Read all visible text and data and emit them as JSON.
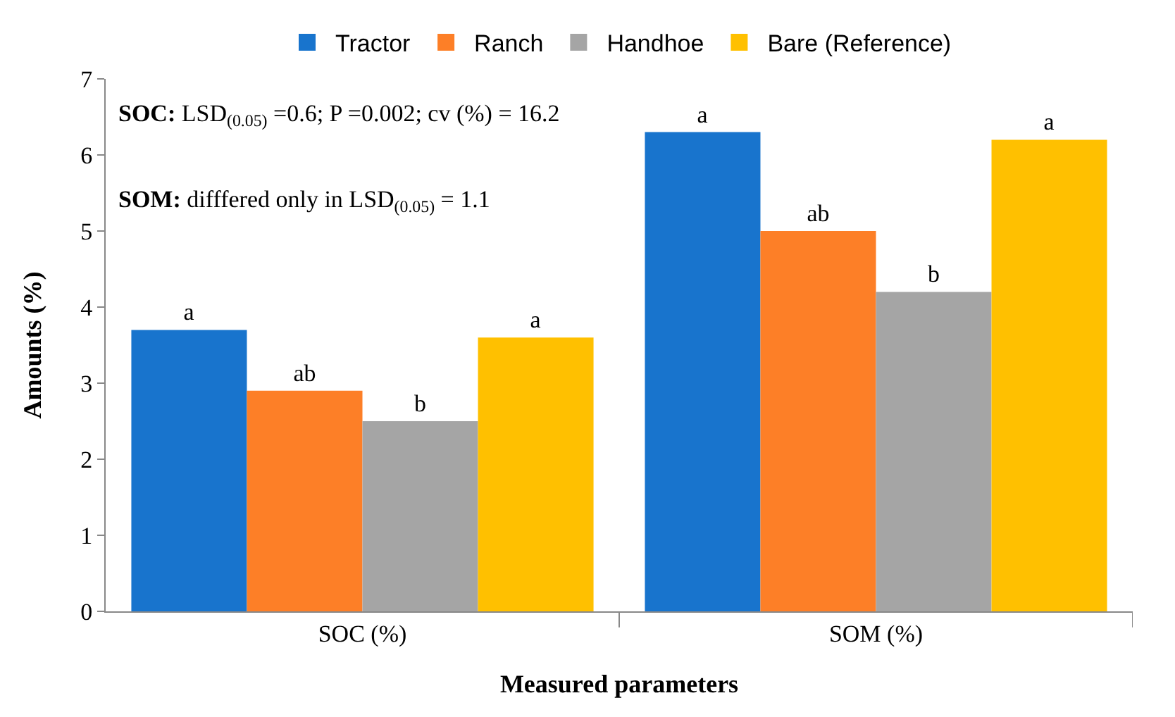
{
  "chart_data": {
    "type": "bar",
    "xlabel": "Measured parameters",
    "ylabel": "Amounts (%)",
    "categories": [
      "SOC (%)",
      "SOM (%)"
    ],
    "series": [
      {
        "name": "Tractor",
        "color": "#1874cd",
        "values": [
          3.7,
          6.3
        ],
        "value_labels": [
          "a",
          "a"
        ]
      },
      {
        "name": "Ranch",
        "color": "#fd7f27",
        "values": [
          2.9,
          5.0
        ],
        "value_labels": [
          "ab",
          "ab"
        ]
      },
      {
        "name": "Handhoe",
        "color": "#a5a5a5",
        "values": [
          2.5,
          4.2
        ],
        "value_labels": [
          "b",
          "b"
        ]
      },
      {
        "name": "Bare (Reference)",
        "color": "#ffc000",
        "values": [
          3.6,
          6.2
        ],
        "value_labels": [
          "a",
          "a"
        ]
      }
    ],
    "ylim": [
      0,
      7
    ],
    "yticks": [
      0,
      1,
      2,
      3,
      4,
      5,
      6,
      7
    ],
    "grid": false,
    "legend": "top",
    "annotations": [
      "SOC: LSD$_{(0.05)}$ =0.6; P =0.002; cv (%) = 16.2",
      "SOM: difffered only in LSD$_{(0.05)}$ = 1.1"
    ]
  }
}
